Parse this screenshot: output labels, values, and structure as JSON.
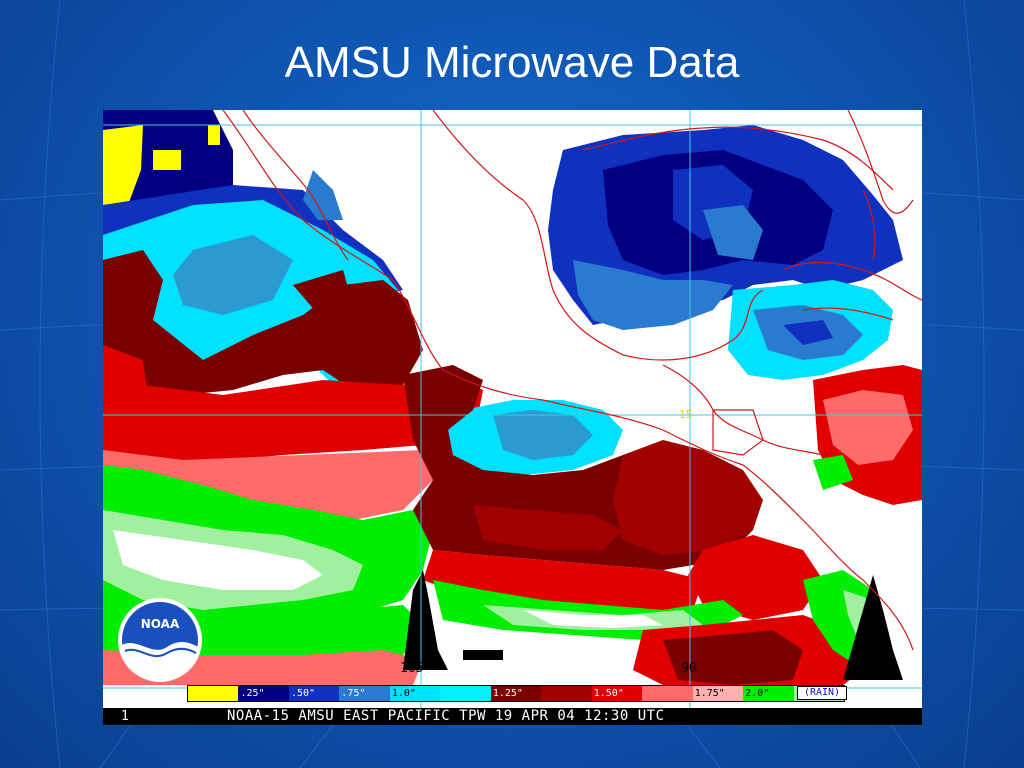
{
  "slide": {
    "title": "AMSU Microwave Data"
  },
  "map": {
    "legend": [
      {
        "label": "",
        "color": "#ffff00"
      },
      {
        "label": ".25\"",
        "color": "#000080"
      },
      {
        "label": ".50\"",
        "color": "#1030c0"
      },
      {
        "label": ".75\"",
        "color": "#2a7ad0"
      },
      {
        "label": "1.0\"",
        "color": "#00e0ff"
      },
      {
        "label": "",
        "color": "#00f0ff"
      },
      {
        "label": "1.25\"",
        "color": "#7a0000"
      },
      {
        "label": "",
        "color": "#a00000"
      },
      {
        "label": "1.50\"",
        "color": "#e00000"
      },
      {
        "label": "",
        "color": "#ff6a6a"
      },
      {
        "label": "1.75\"",
        "color": "#ffb0b0"
      },
      {
        "label": "2.0\"",
        "color": "#00ee00"
      },
      {
        "label": "",
        "color": "#a0f0a0"
      }
    ],
    "legend_text_colors": [
      "#000",
      "#fff",
      "#fff",
      "#fff",
      "#000",
      "#000",
      "#fff",
      "#fff",
      "#fff",
      "#000",
      "#000",
      "#000",
      "#000"
    ],
    "rain_label": "(RAIN)",
    "lon_labels": [
      "105",
      "90"
    ],
    "lat_label": "15",
    "footer_index": "1",
    "footer_caption": "NOAA-15 AMSU EAST PACIFIC TPW 19 APR 04 12:30 UTC",
    "logo_text": "NOAA"
  }
}
